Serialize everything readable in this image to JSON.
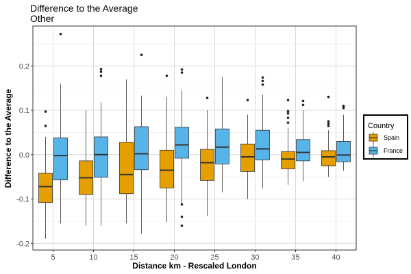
{
  "chart_data": {
    "type": "boxplot",
    "title": "Difference to the Average",
    "subtitle": "Other",
    "xlabel": "Distance km - Rescaled London",
    "ylabel": "Difference to the Average",
    "categories": [
      "5",
      "10",
      "15",
      "20",
      "25",
      "30",
      "35",
      "40"
    ],
    "ylim": [
      -0.215,
      0.29
    ],
    "yticks": [
      -0.2,
      -0.1,
      0.0,
      0.1,
      0.2
    ],
    "ytick_labels": [
      "-0.2",
      "-0.1",
      "0.0",
      "0.1",
      "0.2"
    ],
    "grid": true,
    "legend": {
      "title": "Country",
      "position": "right",
      "entries": [
        "Spain",
        "France"
      ]
    },
    "series": [
      {
        "name": "Spain",
        "color": "#E69F00",
        "boxes": [
          {
            "whisker_low": -0.19,
            "q1": -0.108,
            "median": -0.072,
            "q3": -0.042,
            "whisker_high": 0.04,
            "outliers": [
              0.065,
              0.097
            ]
          },
          {
            "whisker_low": -0.16,
            "q1": -0.09,
            "median": -0.052,
            "q3": -0.014,
            "whisker_high": 0.1,
            "outliers": []
          },
          {
            "whisker_low": -0.155,
            "q1": -0.088,
            "median": -0.045,
            "q3": 0.028,
            "whisker_high": 0.17,
            "outliers": []
          },
          {
            "whisker_low": -0.152,
            "q1": -0.075,
            "median": -0.035,
            "q3": 0.01,
            "whisker_high": 0.13,
            "outliers": [
              0.178
            ]
          },
          {
            "whisker_low": -0.138,
            "q1": -0.058,
            "median": -0.018,
            "q3": 0.012,
            "whisker_high": 0.1,
            "outliers": [
              0.128
            ]
          },
          {
            "whisker_low": -0.1,
            "q1": -0.038,
            "median": -0.005,
            "q3": 0.024,
            "whisker_high": 0.09,
            "outliers": [
              0.123
            ]
          },
          {
            "whisker_low": -0.068,
            "q1": -0.032,
            "median": -0.01,
            "q3": 0.007,
            "whisker_high": 0.06,
            "outliers": [
              0.072,
              0.083,
              0.093,
              0.098,
              0.123
            ]
          },
          {
            "whisker_low": -0.05,
            "q1": -0.025,
            "median": -0.005,
            "q3": 0.009,
            "whisker_high": 0.055,
            "outliers": [
              0.065,
              0.07,
              0.075,
              0.13
            ]
          }
        ]
      },
      {
        "name": "France",
        "color": "#56B4E9",
        "boxes": [
          {
            "whisker_low": -0.155,
            "q1": -0.057,
            "median": -0.002,
            "q3": 0.038,
            "whisker_high": 0.16,
            "outliers": [
              0.272
            ]
          },
          {
            "whisker_low": -0.16,
            "q1": -0.051,
            "median": 0.0,
            "q3": 0.04,
            "whisker_high": 0.118,
            "outliers": [
              0.178,
              0.187,
              0.193
            ]
          },
          {
            "whisker_low": -0.178,
            "q1": -0.034,
            "median": 0.002,
            "q3": 0.063,
            "whisker_high": 0.133,
            "outliers": [
              0.225
            ]
          },
          {
            "whisker_low": -0.108,
            "q1": -0.008,
            "median": 0.022,
            "q3": 0.062,
            "whisker_high": 0.146,
            "outliers": [
              -0.112,
              -0.14,
              -0.16,
              0.185,
              0.192
            ]
          },
          {
            "whisker_low": -0.085,
            "q1": -0.021,
            "median": 0.017,
            "q3": 0.058,
            "whisker_high": 0.175,
            "outliers": []
          },
          {
            "whisker_low": -0.076,
            "q1": -0.012,
            "median": 0.013,
            "q3": 0.055,
            "whisker_high": 0.135,
            "outliers": [
              0.158,
              0.166,
              0.174
            ]
          },
          {
            "whisker_low": -0.06,
            "q1": -0.014,
            "median": 0.005,
            "q3": 0.034,
            "whisker_high": 0.1,
            "outliers": [
              0.112,
              0.121
            ]
          },
          {
            "whisker_low": -0.036,
            "q1": -0.016,
            "median": -0.001,
            "q3": 0.03,
            "whisker_high": 0.09,
            "outliers": [
              0.105,
              0.108,
              0.11
            ]
          }
        ]
      }
    ]
  }
}
